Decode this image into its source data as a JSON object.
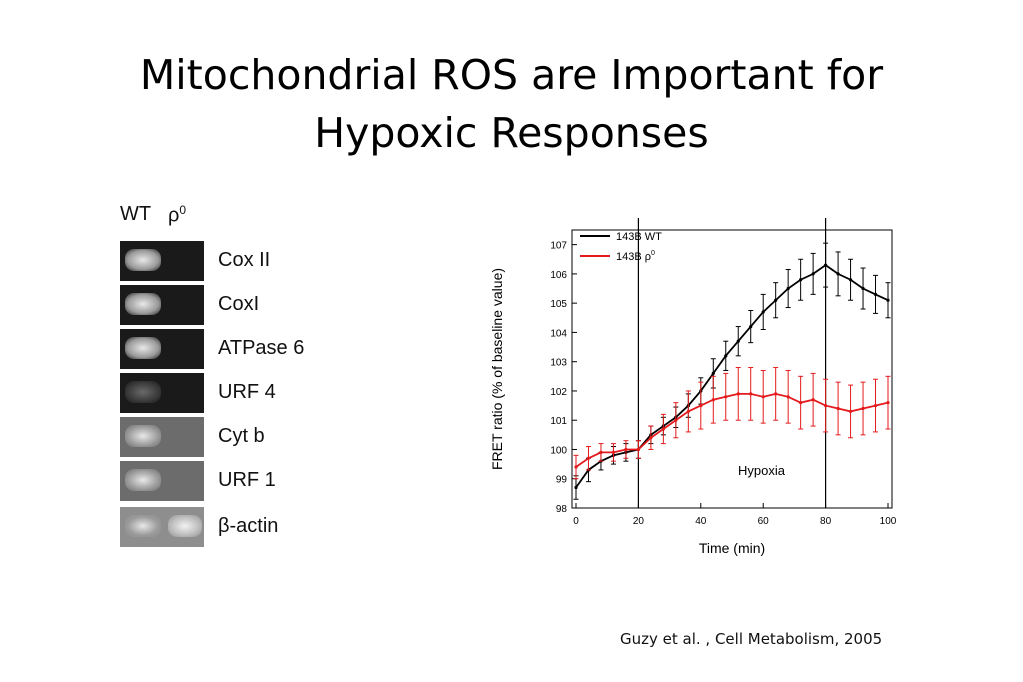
{
  "slide": {
    "title_line1": "Mitochondrial ROS are Important for",
    "title_line2": "Hypoxic Responses",
    "citation": "Guzy et al. , Cell Metabolism, 2005"
  },
  "gel": {
    "col_wt": "WT",
    "col_rho": "ρ",
    "col_rho_sup": "0",
    "genes": [
      "Cox II",
      "CoxI",
      "ATPase 6",
      "URF 4",
      "Cyt b",
      "URF 1",
      "β-actin"
    ]
  },
  "chart_data": {
    "type": "line",
    "title": "",
    "xlabel": "Time (min)",
    "ylabel": "FRET ratio (% of baseline value)",
    "xlim": [
      0,
      100
    ],
    "ylim": [
      98,
      107.5
    ],
    "xticks": [
      0,
      20,
      40,
      60,
      80,
      100
    ],
    "yticks": [
      98,
      99,
      100,
      101,
      102,
      103,
      104,
      105,
      106,
      107
    ],
    "vlines": [
      20,
      80
    ],
    "annotation": "Hypoxia",
    "legend_position": "top-left",
    "series": [
      {
        "name": "143B WT",
        "color": "#000000",
        "x": [
          0,
          4,
          8,
          12,
          16,
          20,
          24,
          28,
          32,
          36,
          40,
          44,
          48,
          52,
          56,
          60,
          64,
          68,
          72,
          76,
          80,
          84,
          88,
          92,
          96,
          100
        ],
        "y": [
          98.7,
          99.3,
          99.6,
          99.8,
          99.9,
          100.0,
          100.5,
          100.8,
          101.1,
          101.5,
          102.0,
          102.6,
          103.2,
          103.7,
          104.2,
          104.7,
          105.1,
          105.5,
          105.8,
          106.0,
          106.3,
          106.0,
          105.8,
          105.5,
          105.3,
          105.1
        ],
        "err": [
          0.4,
          0.4,
          0.3,
          0.3,
          0.3,
          0.3,
          0.3,
          0.3,
          0.35,
          0.4,
          0.45,
          0.5,
          0.5,
          0.5,
          0.55,
          0.6,
          0.6,
          0.65,
          0.7,
          0.7,
          0.75,
          0.75,
          0.7,
          0.7,
          0.65,
          0.6
        ]
      },
      {
        "name": "143B ρ",
        "name_sup": "0",
        "color": "#e41a1c",
        "x": [
          0,
          4,
          8,
          12,
          16,
          20,
          24,
          28,
          32,
          36,
          40,
          44,
          48,
          52,
          56,
          60,
          64,
          68,
          72,
          76,
          80,
          84,
          88,
          92,
          96,
          100
        ],
        "y": [
          99.4,
          99.7,
          99.9,
          99.9,
          100.0,
          100.0,
          100.4,
          100.7,
          101.0,
          101.3,
          101.5,
          101.7,
          101.8,
          101.9,
          101.9,
          101.8,
          101.9,
          101.8,
          101.6,
          101.7,
          101.5,
          101.4,
          101.3,
          101.4,
          101.5,
          101.6
        ],
        "err": [
          0.4,
          0.4,
          0.3,
          0.3,
          0.3,
          0.3,
          0.4,
          0.5,
          0.6,
          0.7,
          0.8,
          0.8,
          0.8,
          0.9,
          0.9,
          0.9,
          0.9,
          0.9,
          0.9,
          0.9,
          0.9,
          0.9,
          0.9,
          0.9,
          0.9,
          0.9
        ]
      }
    ]
  }
}
